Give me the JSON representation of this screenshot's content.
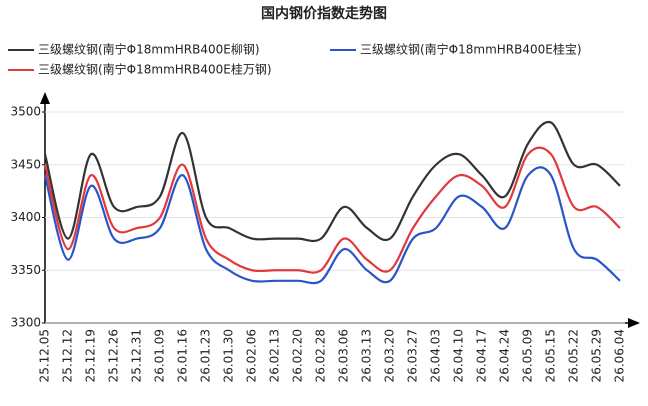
{
  "chart_data": {
    "type": "line",
    "title": "国内钢价指数走势图",
    "categories": [
      "25.12.05",
      "25.12.12",
      "25.12.19",
      "25.12.26",
      "25.12.31",
      "26.01.09",
      "26.01.16",
      "26.01.23",
      "26.01.30",
      "26.02.06",
      "26.02.13",
      "26.02.20",
      "26.02.28",
      "26.03.06",
      "26.03.13",
      "26.03.20",
      "26.03.27",
      "26.04.03",
      "26.04.10",
      "26.04.17",
      "26.04.24",
      "26.05.09",
      "26.05.15",
      "26.05.22",
      "26.05.29",
      "26.06.04"
    ],
    "series": [
      {
        "name": "三级螺纹钢(南宁Φ18mmHRB400E柳钢)",
        "color": "#333333",
        "values": [
          3460,
          3380,
          3460,
          3410,
          3410,
          3420,
          3480,
          3400,
          3390,
          3380,
          3380,
          3380,
          3380,
          3410,
          3390,
          3380,
          3420,
          3450,
          3460,
          3440,
          3420,
          3470,
          3490,
          3450,
          3450,
          3430
        ]
      },
      {
        "name": "三级螺纹钢(南宁Φ18mmHRB400E桂宝)",
        "color": "#2a55c8",
        "values": [
          3440,
          3360,
          3430,
          3380,
          3380,
          3390,
          3440,
          3370,
          3350,
          3340,
          3340,
          3340,
          3340,
          3370,
          3350,
          3340,
          3380,
          3390,
          3420,
          3410,
          3390,
          3440,
          3440,
          3370,
          3360,
          3340
        ]
      },
      {
        "name": "三级螺纹钢(南宁Φ18mmHRB400E桂万钢)",
        "color": "#e0393e",
        "values": [
          3450,
          3370,
          3440,
          3390,
          3390,
          3400,
          3450,
          3380,
          3360,
          3350,
          3350,
          3350,
          3350,
          3380,
          3360,
          3350,
          3390,
          3420,
          3440,
          3430,
          3410,
          3460,
          3460,
          3410,
          3410,
          3390
        ]
      }
    ],
    "ylim": [
      3300,
      3500
    ],
    "yticks": [
      3300,
      3350,
      3400,
      3450,
      3500
    ],
    "grid": true
  }
}
